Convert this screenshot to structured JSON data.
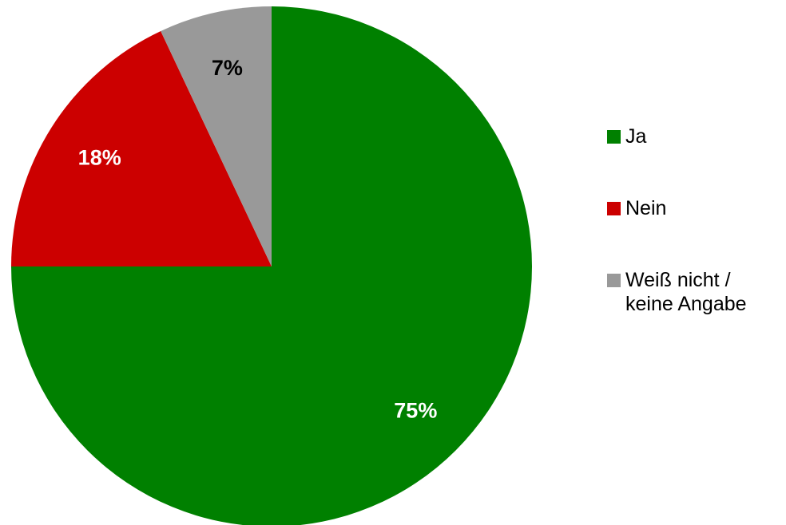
{
  "chart_data": {
    "type": "pie",
    "title": "",
    "start_angle_deg": 0,
    "direction": "clockwise",
    "legend_position": "right",
    "slices": [
      {
        "name": "Ja",
        "value": 75,
        "label": "75%",
        "color": "#008000",
        "label_color": "#ffffff"
      },
      {
        "name": "Nein",
        "value": 18,
        "label": "18%",
        "color": "#cc0000",
        "label_color": "#ffffff"
      },
      {
        "name": "Weiß nicht /\nkeine Angabe",
        "value": 7,
        "label": "7%",
        "color": "#999999",
        "label_color": "#000000"
      }
    ]
  },
  "legend": {
    "items": [
      {
        "label": "Ja",
        "color": "#008000"
      },
      {
        "label": "Nein",
        "color": "#cc0000"
      },
      {
        "label": "Weiß nicht /\nkeine Angabe",
        "color": "#999999"
      }
    ]
  }
}
